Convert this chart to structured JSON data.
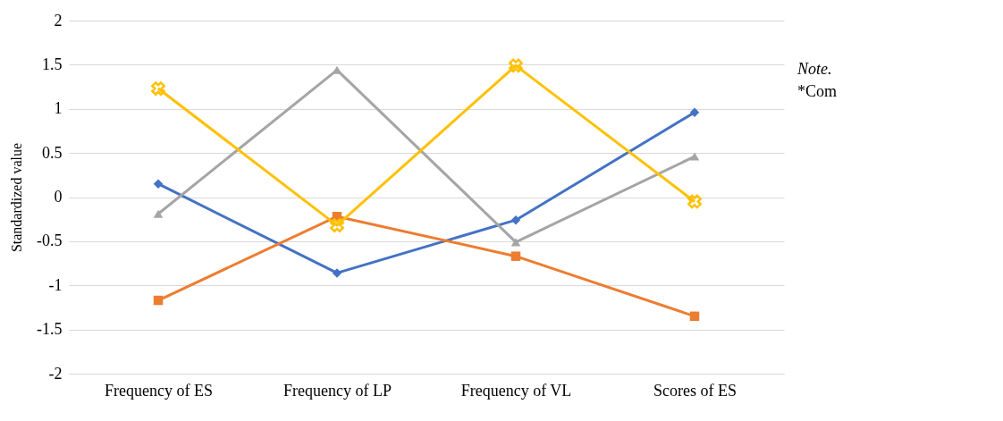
{
  "chart_data": {
    "type": "line",
    "ylabel": "Standardized value",
    "categories": [
      "Frequency of ES",
      "Frequency of LP",
      "Frequency of VL",
      "Scores of ES"
    ],
    "series": [
      {
        "color": "#4472c4",
        "marker": "diamond",
        "values": [
          0.15,
          -0.86,
          -0.26,
          0.96
        ]
      },
      {
        "color": "#ed7d31",
        "marker": "square",
        "values": [
          -1.17,
          -0.22,
          -0.67,
          -1.35
        ]
      },
      {
        "color": "#a5a5a5",
        "marker": "triangle",
        "values": [
          -0.19,
          1.44,
          -0.51,
          0.46
        ]
      },
      {
        "color": "#ffc000",
        "marker": "cross",
        "values": [
          1.23,
          -0.32,
          1.49,
          -0.05
        ]
      }
    ],
    "ylim": [
      -2,
      2
    ],
    "yticks": [
      -2,
      -1.5,
      -1,
      -0.5,
      0,
      0.5,
      1,
      1.5,
      2
    ],
    "grid": "y",
    "annotations": [
      "Note.",
      "*Com"
    ]
  }
}
